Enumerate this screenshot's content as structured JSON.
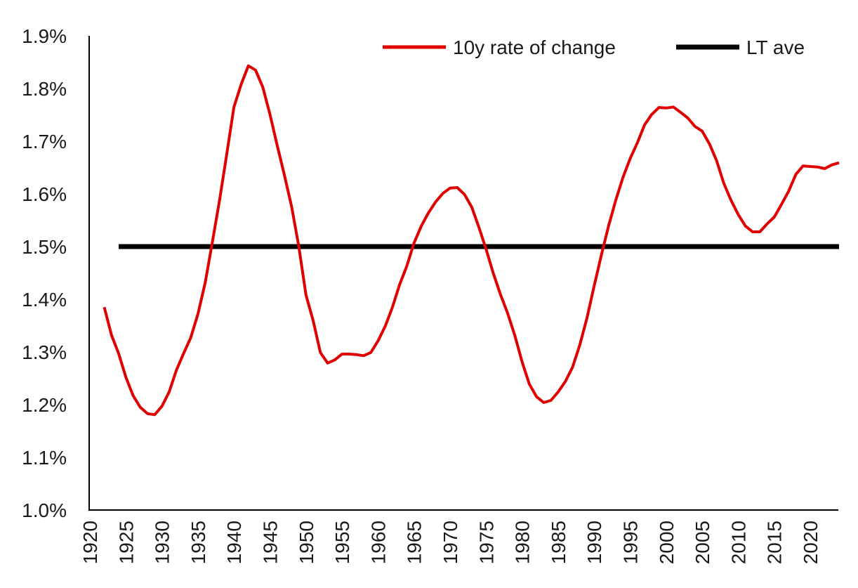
{
  "chart_data": {
    "type": "line",
    "title": "",
    "xlabel": "",
    "ylabel": "",
    "ylim": [
      1.0,
      1.9
    ],
    "yticks": [
      "1.0%",
      "1.1%",
      "1.2%",
      "1.3%",
      "1.4%",
      "1.5%",
      "1.6%",
      "1.7%",
      "1.8%",
      "1.9%"
    ],
    "xlim": [
      1920,
      2024
    ],
    "xticks": [
      "1920",
      "1925",
      "1930",
      "1935",
      "1940",
      "1945",
      "1950",
      "1955",
      "1960",
      "1965",
      "1970",
      "1975",
      "1980",
      "1985",
      "1990",
      "1995",
      "2000",
      "2005",
      "2010",
      "2015",
      "2020"
    ],
    "grid": false,
    "legend_position": "top-right",
    "series": [
      {
        "name": "10y rate of change",
        "color": "#e00000",
        "x": [
          1922,
          1923,
          1924,
          1925,
          1926,
          1927,
          1928,
          1929,
          1930,
          1931,
          1932,
          1933,
          1934,
          1935,
          1936,
          1937,
          1938,
          1939,
          1940,
          1941,
          1942,
          1943,
          1944,
          1945,
          1946,
          1947,
          1948,
          1949,
          1950,
          1951,
          1952,
          1953,
          1954,
          1955,
          1956,
          1957,
          1958,
          1959,
          1960,
          1961,
          1962,
          1963,
          1964,
          1965,
          1966,
          1967,
          1968,
          1969,
          1970,
          1971,
          1972,
          1973,
          1974,
          1975,
          1976,
          1977,
          1978,
          1979,
          1980,
          1981,
          1982,
          1983,
          1984,
          1985,
          1986,
          1987,
          1988,
          1989,
          1990,
          1991,
          1992,
          1993,
          1994,
          1995,
          1996,
          1997,
          1998,
          1999,
          2000,
          2001,
          2002,
          2003,
          2004,
          2005,
          2006,
          2007,
          2008,
          2009,
          2010,
          2011,
          2012,
          2013,
          2014,
          2015,
          2016,
          2017,
          2018,
          2019,
          2020,
          2021,
          2022,
          2023,
          2024
        ],
        "values": [
          1.385,
          1.332,
          1.297,
          1.252,
          1.217,
          1.195,
          1.183,
          1.181,
          1.197,
          1.224,
          1.265,
          1.297,
          1.327,
          1.372,
          1.431,
          1.508,
          1.588,
          1.675,
          1.765,
          1.808,
          1.843,
          1.835,
          1.803,
          1.751,
          1.692,
          1.636,
          1.576,
          1.501,
          1.408,
          1.359,
          1.299,
          1.279,
          1.285,
          1.296,
          1.296,
          1.295,
          1.293,
          1.299,
          1.321,
          1.349,
          1.385,
          1.428,
          1.463,
          1.507,
          1.539,
          1.564,
          1.585,
          1.601,
          1.611,
          1.612,
          1.599,
          1.575,
          1.537,
          1.495,
          1.449,
          1.409,
          1.373,
          1.331,
          1.281,
          1.239,
          1.215,
          1.204,
          1.208,
          1.224,
          1.244,
          1.271,
          1.313,
          1.364,
          1.425,
          1.484,
          1.539,
          1.588,
          1.631,
          1.667,
          1.697,
          1.731,
          1.751,
          1.764,
          1.763,
          1.765,
          1.755,
          1.744,
          1.728,
          1.719,
          1.695,
          1.663,
          1.62,
          1.588,
          1.561,
          1.539,
          1.528,
          1.528,
          1.543,
          1.556,
          1.58,
          1.605,
          1.637,
          1.653,
          1.652,
          1.651,
          1.648,
          1.655,
          1.659
        ]
      },
      {
        "name": "LT ave",
        "color": "#000000",
        "x": [
          1924,
          2024
        ],
        "values": [
          1.5,
          1.5
        ]
      }
    ]
  }
}
